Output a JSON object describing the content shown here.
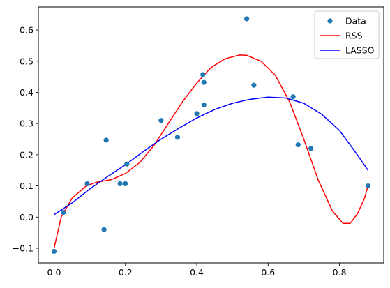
{
  "chart_data": {
    "type": "scatter",
    "title": "",
    "xlabel": "",
    "ylabel": "",
    "xlim": [
      -0.044,
      0.924
    ],
    "ylim": [
      -0.147,
      0.674
    ],
    "xticks": [
      0.0,
      0.2,
      0.4,
      0.6,
      0.8
    ],
    "xtick_labels": [
      "0.0",
      "0.2",
      "0.4",
      "0.6",
      "0.8"
    ],
    "yticks": [
      -0.1,
      0.0,
      0.1,
      0.2,
      0.3,
      0.4,
      0.5,
      0.6
    ],
    "ytick_labels": [
      "−0.1",
      "0.0",
      "0.1",
      "0.2",
      "0.3",
      "0.4",
      "0.5",
      "0.6"
    ],
    "grid": false,
    "legend_position": "top-right",
    "series": [
      {
        "name": "Data",
        "kind": "scatter",
        "color": "#1f77b4",
        "points": [
          [
            0.0,
            -0.11
          ],
          [
            0.026,
            0.015
          ],
          [
            0.093,
            0.107
          ],
          [
            0.14,
            -0.04
          ],
          [
            0.146,
            0.247
          ],
          [
            0.185,
            0.107
          ],
          [
            0.2,
            0.107
          ],
          [
            0.204,
            0.17
          ],
          [
            0.3,
            0.31
          ],
          [
            0.346,
            0.256
          ],
          [
            0.4,
            0.332
          ],
          [
            0.417,
            0.457
          ],
          [
            0.42,
            0.432
          ],
          [
            0.42,
            0.36
          ],
          [
            0.54,
            0.636
          ],
          [
            0.56,
            0.423
          ],
          [
            0.67,
            0.386
          ],
          [
            0.684,
            0.232
          ],
          [
            0.72,
            0.22
          ],
          [
            0.88,
            0.1
          ]
        ]
      },
      {
        "name": "RSS",
        "kind": "line",
        "color": "#ff0000",
        "points": [
          [
            0.0,
            -0.1
          ],
          [
            0.02,
            0.0
          ],
          [
            0.05,
            0.06
          ],
          [
            0.09,
            0.1
          ],
          [
            0.12,
            0.112
          ],
          [
            0.16,
            0.12
          ],
          [
            0.2,
            0.14
          ],
          [
            0.24,
            0.175
          ],
          [
            0.28,
            0.23
          ],
          [
            0.32,
            0.3
          ],
          [
            0.36,
            0.37
          ],
          [
            0.4,
            0.43
          ],
          [
            0.44,
            0.48
          ],
          [
            0.48,
            0.508
          ],
          [
            0.52,
            0.52
          ],
          [
            0.54,
            0.519
          ],
          [
            0.58,
            0.5
          ],
          [
            0.62,
            0.455
          ],
          [
            0.66,
            0.37
          ],
          [
            0.7,
            0.25
          ],
          [
            0.74,
            0.12
          ],
          [
            0.78,
            0.02
          ],
          [
            0.81,
            -0.02
          ],
          [
            0.83,
            -0.02
          ],
          [
            0.85,
            0.01
          ],
          [
            0.87,
            0.06
          ],
          [
            0.88,
            0.1
          ]
        ]
      },
      {
        "name": "LASSO",
        "kind": "line",
        "color": "#0000ff",
        "points": [
          [
            0.0,
            0.008
          ],
          [
            0.05,
            0.045
          ],
          [
            0.1,
            0.09
          ],
          [
            0.15,
            0.13
          ],
          [
            0.2,
            0.168
          ],
          [
            0.25,
            0.21
          ],
          [
            0.3,
            0.25
          ],
          [
            0.35,
            0.285
          ],
          [
            0.4,
            0.318
          ],
          [
            0.45,
            0.345
          ],
          [
            0.5,
            0.365
          ],
          [
            0.55,
            0.378
          ],
          [
            0.6,
            0.385
          ],
          [
            0.65,
            0.382
          ],
          [
            0.7,
            0.365
          ],
          [
            0.75,
            0.33
          ],
          [
            0.8,
            0.278
          ],
          [
            0.85,
            0.2
          ],
          [
            0.88,
            0.15
          ]
        ]
      }
    ]
  }
}
